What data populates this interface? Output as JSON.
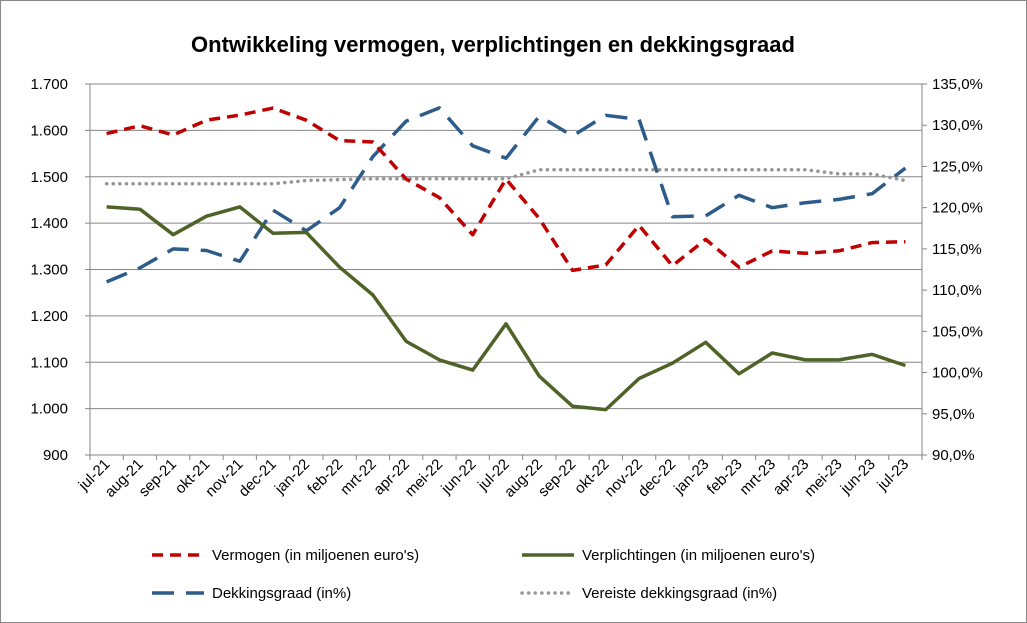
{
  "chart_data": {
    "type": "line",
    "title": "Ontwikkeling vermogen, verplichtingen en dekkingsgraad",
    "xlabel": "",
    "ylabel": "",
    "categories": [
      "jul-21",
      "aug-21",
      "sep-21",
      "okt-21",
      "nov-21",
      "dec-21",
      "jan-22",
      "feb-22",
      "mrt-22",
      "apr-22",
      "mei-22",
      "jun-22",
      "jul-22",
      "aug-22",
      "sep-22",
      "okt-22",
      "nov-22",
      "dec-22",
      "jan-23",
      "feb-23",
      "mrt-23",
      "apr-23",
      "mei-23",
      "jun-23",
      "jul-23"
    ],
    "y_left": {
      "min": 900,
      "max": 1700,
      "step": 100,
      "tick_labels": [
        "900",
        "1.000",
        "1.100",
        "1.200",
        "1.300",
        "1.400",
        "1.500",
        "1.600",
        "1.700"
      ]
    },
    "y_right": {
      "min": 90,
      "max": 135,
      "step": 5,
      "tick_labels": [
        "90,0%",
        "95,0%",
        "100,0%",
        "105,0%",
        "110,0%",
        "115,0%",
        "120,0%",
        "125,0%",
        "130,0%",
        "135,0%"
      ]
    },
    "grid": true,
    "legend_position": "bottom",
    "series": [
      {
        "name": "Vermogen (in miljoenen euro's)",
        "axis": "left",
        "color": "#C00000",
        "style": "dash",
        "values": [
          1593,
          1610,
          1590,
          1622,
          1633,
          1648,
          1622,
          1578,
          1575,
          1495,
          1455,
          1375,
          1495,
          1410,
          1298,
          1310,
          1395,
          1308,
          1365,
          1305,
          1340,
          1335,
          1340,
          1358,
          1360
        ]
      },
      {
        "name": "Verplichtingen (in miljoenen euro's)",
        "axis": "left",
        "color": "#4F6228",
        "style": "solid",
        "values": [
          1435,
          1430,
          1375,
          1415,
          1435,
          1378,
          1380,
          1305,
          1245,
          1145,
          1105,
          1083,
          1183,
          1070,
          1005,
          998,
          1065,
          1098,
          1143,
          1075,
          1120,
          1105,
          1105,
          1117,
          1093
        ]
      },
      {
        "name": "Dekkingsgraad (in%)",
        "axis": "right",
        "color": "#2E5C8A",
        "style": "longdash",
        "values": [
          111.0,
          112.7,
          115.0,
          114.8,
          113.5,
          119.7,
          117.2,
          120.0,
          126.2,
          130.5,
          132.1,
          127.5,
          126.0,
          131.1,
          128.7,
          131.2,
          130.7,
          118.9,
          119.0,
          121.5,
          120.0,
          120.6,
          121.0,
          121.7,
          124.8
        ]
      },
      {
        "name": "Vereiste dekkingsgraad (in%)",
        "axis": "right",
        "color": "#969696",
        "style": "dot",
        "values": [
          122.9,
          122.9,
          122.9,
          122.9,
          122.9,
          122.9,
          123.3,
          123.4,
          123.5,
          123.5,
          123.5,
          123.5,
          123.5,
          124.6,
          124.6,
          124.6,
          124.6,
          124.6,
          124.6,
          124.6,
          124.6,
          124.6,
          124.1,
          124.1,
          123.3
        ]
      }
    ]
  }
}
